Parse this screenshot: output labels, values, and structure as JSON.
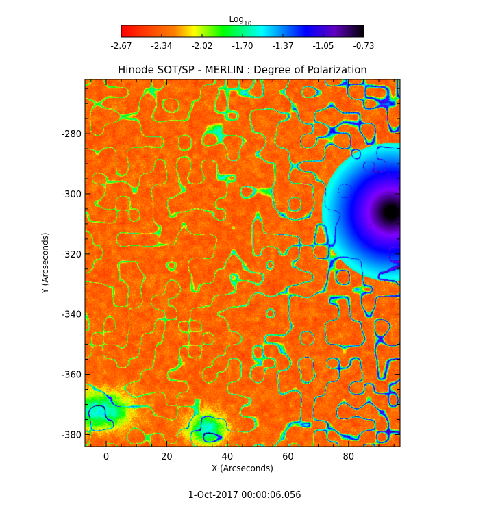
{
  "chart_data": {
    "type": "heatmap",
    "title": "Hinode SOT/SP - MERLIN : Degree of Polarization",
    "xlabel": "X (Arcseconds)",
    "ylabel": "Y (Arcseconds)",
    "xlim": [
      -7,
      97
    ],
    "ylim": [
      -384,
      -262
    ],
    "x_ticks": [
      0,
      20,
      40,
      60,
      80
    ],
    "y_ticks": [
      -280,
      -300,
      -320,
      -340,
      -360,
      -380
    ],
    "grid": false,
    "colorbar": {
      "label_base": "Log",
      "label_sub": "10",
      "placement": "top",
      "min": -2.67,
      "max": -0.73,
      "ticks": [
        "-2.67",
        "-2.34",
        "-2.02",
        "-1.70",
        "-1.37",
        "-1.05",
        "-0.73"
      ],
      "colormap": [
        "#ff0000",
        "#ff8000",
        "#ffff00",
        "#00ff00",
        "#00ffff",
        "#0000ff",
        "#8000ff",
        "#000000"
      ]
    },
    "features": [
      {
        "kind": "sunspot",
        "x": 94,
        "y": -306,
        "radius": 9,
        "value": -0.78
      },
      {
        "kind": "penumbra",
        "x": 94,
        "y": -306,
        "radius": 17,
        "value": -1.15
      }
    ],
    "timestamp": "1-Oct-2017 00:00:06.056"
  }
}
